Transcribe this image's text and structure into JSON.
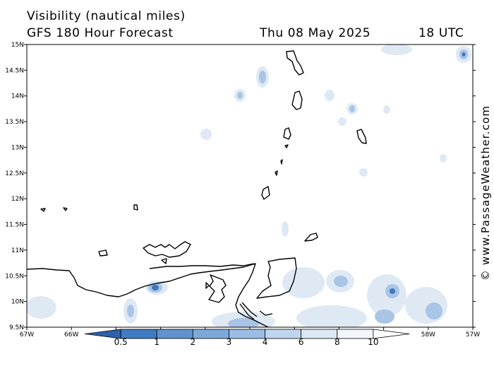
{
  "header": {
    "title_line1": "Visibility (nautical miles)",
    "title_line2": "GFS 180 Hour Forecast",
    "date": "Thu 08 May 2025",
    "time": "18 UTC"
  },
  "map": {
    "lat_labels": [
      "15N",
      "14.5N",
      "14N",
      "13.5N",
      "13N",
      "12.5N",
      "12N",
      "11.5N",
      "11N",
      "10.5N",
      "10N",
      "9.5N"
    ],
    "lon_labels": [
      "67W",
      "66W",
      "65W",
      "64W",
      "63W",
      "62W",
      "61W",
      "60W",
      "59W",
      "58W",
      "57W"
    ],
    "lat_range": [
      9.5,
      15
    ],
    "lon_range": [
      -67,
      -57
    ],
    "land_outline_color": "#000000",
    "fog_color_light": "#dfe9f4",
    "fog_color_mid": "#a9c4e4",
    "fog_color_dark": "#3d79c2"
  },
  "credit": "© www.PassageWeather.com",
  "colorbar": {
    "labels": [
      "0.5",
      "1",
      "2",
      "3",
      "4",
      "6",
      "8",
      "10"
    ],
    "colors": [
      "#2c62ad",
      "#3f7cc3",
      "#5f93d0",
      "#7ca9da",
      "#9bbde3",
      "#bed5ee",
      "#dde8f5",
      "#f3f7fc",
      "#ffffff"
    ]
  }
}
